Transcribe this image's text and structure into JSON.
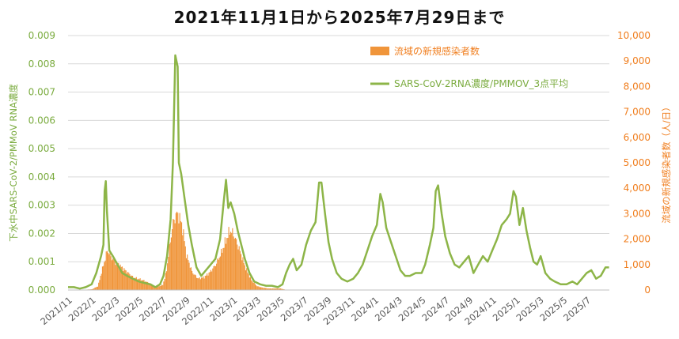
{
  "chart_data": {
    "type": "bar+line",
    "title": "2021年11月1日から2025年7月29日まで",
    "y_left": {
      "label": "下水中SARS-CoV-2/PMMoV RNA濃度",
      "ticks": [
        "0.000",
        "0.001",
        "0.002",
        "0.003",
        "0.004",
        "0.005",
        "0.006",
        "0.007",
        "0.008",
        "0.009"
      ],
      "range": [
        0,
        0.009
      ]
    },
    "y_right": {
      "label": "流域の新規感染者数（人/日）",
      "ticks": [
        "0",
        "1,000",
        "2,000",
        "3,000",
        "4,000",
        "5,000",
        "6,000",
        "7,000",
        "8,000",
        "9,000",
        "10,000"
      ],
      "range": [
        0,
        10000
      ]
    },
    "x_ticks": [
      "2021/11",
      "2022/1",
      "2022/3",
      "2022/5",
      "2022/7",
      "2022/9",
      "2022/11",
      "2023/1",
      "2023/3",
      "2023/5",
      "2023/7",
      "2023/9",
      "2023/11",
      "2024/1",
      "2024/3",
      "2024/5",
      "2024/7",
      "2024/9",
      "2024/11",
      "2025/1",
      "2025/3",
      "2025/5",
      "2025/7"
    ],
    "x_range_months": [
      0,
      45.93
    ],
    "legend": {
      "placement": "top-left inside plot",
      "bar_label": "流域の新規感染者数",
      "line_label": "SARS-CoV-2RNA濃度/PMMOV_3点平均"
    },
    "colors": {
      "bar": "#f0953a",
      "line": "#8db548",
      "left_axis": "#7aab3e",
      "right_axis": "#f07e1e",
      "grid": "#d9d9d9"
    },
    "series": [
      {
        "name": "流域の新規感染者数",
        "axis": "right",
        "type": "bar",
        "points": [
          [
            0.0,
            0
          ],
          [
            1.0,
            0
          ],
          [
            2.0,
            30
          ],
          [
            2.5,
            150
          ],
          [
            2.8,
            700
          ],
          [
            3.1,
            1200
          ],
          [
            3.3,
            1580
          ],
          [
            3.6,
            1300
          ],
          [
            4.0,
            1100
          ],
          [
            4.5,
            900
          ],
          [
            5.0,
            700
          ],
          [
            5.5,
            500
          ],
          [
            6.0,
            430
          ],
          [
            6.5,
            350
          ],
          [
            7.0,
            220
          ],
          [
            7.5,
            120
          ],
          [
            8.0,
            200
          ],
          [
            8.3,
            700
          ],
          [
            8.6,
            1800
          ],
          [
            8.9,
            2700
          ],
          [
            9.2,
            3000
          ],
          [
            9.4,
            2900
          ],
          [
            9.7,
            2400
          ],
          [
            10.0,
            1400
          ],
          [
            10.5,
            700
          ],
          [
            11.0,
            450
          ],
          [
            11.5,
            500
          ],
          [
            12.0,
            700
          ],
          [
            12.5,
            1000
          ],
          [
            13.0,
            1500
          ],
          [
            13.4,
            2000
          ],
          [
            13.7,
            2350
          ],
          [
            14.0,
            2200
          ],
          [
            14.5,
            1600
          ],
          [
            15.0,
            900
          ],
          [
            15.5,
            400
          ],
          [
            16.0,
            150
          ],
          [
            16.5,
            90
          ],
          [
            17.0,
            60
          ],
          [
            18.0,
            60
          ],
          [
            18.5,
            0
          ]
        ]
      },
      {
        "name": "SARS-CoV-2RNA濃度/PMMOV_3点平均",
        "axis": "left",
        "type": "line",
        "points": [
          [
            0.0,
            0.0001
          ],
          [
            0.5,
            0.0001
          ],
          [
            1.0,
            5e-05
          ],
          [
            1.5,
            0.0001
          ],
          [
            2.0,
            0.0002
          ],
          [
            2.4,
            0.0006
          ],
          [
            2.8,
            0.0012
          ],
          [
            3.0,
            0.0016
          ],
          [
            3.1,
            0.0035
          ],
          [
            3.2,
            0.00385
          ],
          [
            3.3,
            0.0028
          ],
          [
            3.5,
            0.0014
          ],
          [
            3.8,
            0.0012
          ],
          [
            4.2,
            0.0009
          ],
          [
            4.6,
            0.0006
          ],
          [
            5.0,
            0.0005
          ],
          [
            5.5,
            0.0004
          ],
          [
            6.0,
            0.0003
          ],
          [
            6.5,
            0.00025
          ],
          [
            7.0,
            0.0002
          ],
          [
            7.4,
            0.0001
          ],
          [
            7.8,
            0.0002
          ],
          [
            8.1,
            0.0005
          ],
          [
            8.4,
            0.0012
          ],
          [
            8.7,
            0.0025
          ],
          [
            8.9,
            0.0045
          ],
          [
            9.1,
            0.0083
          ],
          [
            9.3,
            0.0079
          ],
          [
            9.4,
            0.0045
          ],
          [
            9.6,
            0.0041
          ],
          [
            9.9,
            0.0032
          ],
          [
            10.2,
            0.0023
          ],
          [
            10.5,
            0.0016
          ],
          [
            10.9,
            0.0008
          ],
          [
            11.3,
            0.0005
          ],
          [
            11.7,
            0.0007
          ],
          [
            12.1,
            0.0009
          ],
          [
            12.5,
            0.0011
          ],
          [
            12.9,
            0.0018
          ],
          [
            13.2,
            0.0031
          ],
          [
            13.4,
            0.0039
          ],
          [
            13.6,
            0.0029
          ],
          [
            13.8,
            0.0031
          ],
          [
            14.1,
            0.0027
          ],
          [
            14.4,
            0.0021
          ],
          [
            14.7,
            0.0016
          ],
          [
            15.0,
            0.0011
          ],
          [
            15.4,
            0.0006
          ],
          [
            15.8,
            0.0003
          ],
          [
            16.3,
            0.0002
          ],
          [
            16.8,
            0.00015
          ],
          [
            17.3,
            0.00015
          ],
          [
            17.8,
            0.0001
          ],
          [
            18.2,
            0.0002
          ],
          [
            18.5,
            0.0006
          ],
          [
            18.8,
            0.0009
          ],
          [
            19.1,
            0.0011
          ],
          [
            19.4,
            0.0007
          ],
          [
            19.8,
            0.0009
          ],
          [
            20.2,
            0.0016
          ],
          [
            20.6,
            0.0021
          ],
          [
            21.0,
            0.0024
          ],
          [
            21.3,
            0.0038
          ],
          [
            21.5,
            0.0038
          ],
          [
            21.8,
            0.0027
          ],
          [
            22.1,
            0.0017
          ],
          [
            22.4,
            0.0011
          ],
          [
            22.8,
            0.0006
          ],
          [
            23.2,
            0.0004
          ],
          [
            23.7,
            0.0003
          ],
          [
            24.2,
            0.0004
          ],
          [
            24.6,
            0.0006
          ],
          [
            25.0,
            0.0009
          ],
          [
            25.4,
            0.0014
          ],
          [
            25.8,
            0.0019
          ],
          [
            26.2,
            0.0023
          ],
          [
            26.5,
            0.0034
          ],
          [
            26.7,
            0.0031
          ],
          [
            27.0,
            0.0022
          ],
          [
            27.4,
            0.0017
          ],
          [
            27.8,
            0.0012
          ],
          [
            28.2,
            0.0007
          ],
          [
            28.6,
            0.0005
          ],
          [
            29.0,
            0.0005
          ],
          [
            29.5,
            0.0006
          ],
          [
            30.0,
            0.0006
          ],
          [
            30.3,
            0.0009
          ],
          [
            30.7,
            0.0016
          ],
          [
            31.0,
            0.0022
          ],
          [
            31.2,
            0.0035
          ],
          [
            31.4,
            0.0037
          ],
          [
            31.7,
            0.0027
          ],
          [
            32.0,
            0.0019
          ],
          [
            32.4,
            0.0013
          ],
          [
            32.8,
            0.0009
          ],
          [
            33.2,
            0.0008
          ],
          [
            33.6,
            0.001
          ],
          [
            34.0,
            0.0012
          ],
          [
            34.4,
            0.0006
          ],
          [
            34.8,
            0.0009
          ],
          [
            35.2,
            0.0012
          ],
          [
            35.6,
            0.001
          ],
          [
            36.0,
            0.0014
          ],
          [
            36.4,
            0.0018
          ],
          [
            36.8,
            0.0023
          ],
          [
            37.2,
            0.0025
          ],
          [
            37.5,
            0.0027
          ],
          [
            37.8,
            0.0035
          ],
          [
            38.0,
            0.0033
          ],
          [
            38.3,
            0.0023
          ],
          [
            38.6,
            0.0029
          ],
          [
            38.9,
            0.0021
          ],
          [
            39.2,
            0.0015
          ],
          [
            39.5,
            0.001
          ],
          [
            39.8,
            0.0009
          ],
          [
            40.1,
            0.0012
          ],
          [
            40.5,
            0.0006
          ],
          [
            40.9,
            0.0004
          ],
          [
            41.3,
            0.0003
          ],
          [
            41.8,
            0.0002
          ],
          [
            42.3,
            0.0002
          ],
          [
            42.8,
            0.0003
          ],
          [
            43.2,
            0.0002
          ],
          [
            43.6,
            0.0004
          ],
          [
            44.0,
            0.0006
          ],
          [
            44.4,
            0.0007
          ],
          [
            44.8,
            0.0004
          ],
          [
            45.2,
            0.0005
          ],
          [
            45.6,
            0.0008
          ],
          [
            45.9,
            0.0008
          ]
        ]
      }
    ]
  }
}
